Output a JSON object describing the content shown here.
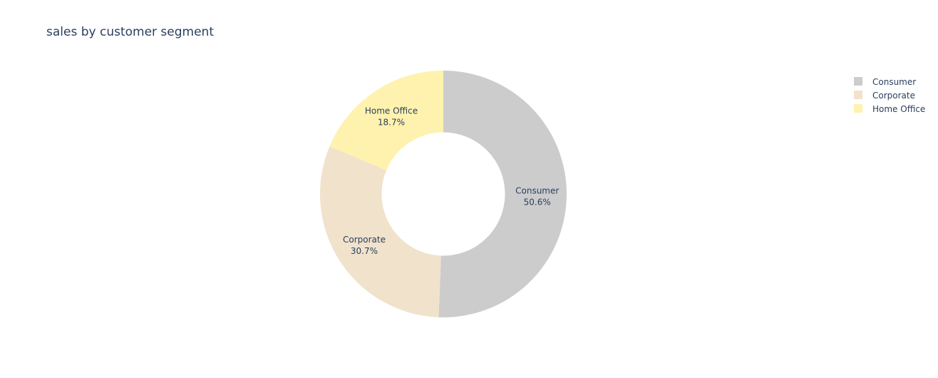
{
  "chart_data": {
    "type": "pie",
    "hole": 0.5,
    "title": "sales by customer segment",
    "categories": [
      "Consumer",
      "Corporate",
      "Home Office"
    ],
    "values": [
      50.6,
      30.7,
      18.7
    ],
    "slice_labels": [
      {
        "name": "Consumer",
        "percent": "50.6%"
      },
      {
        "name": "Corporate",
        "percent": "30.7%"
      },
      {
        "name": "Home Office",
        "percent": "18.7%"
      }
    ],
    "colors": [
      "#cccccc",
      "#f1e2cc",
      "#fff2ae"
    ],
    "legend": {
      "position": "top-right",
      "entries": [
        "Consumer",
        "Corporate",
        "Home Office"
      ]
    },
    "direction": "clockwise",
    "start": "top"
  }
}
